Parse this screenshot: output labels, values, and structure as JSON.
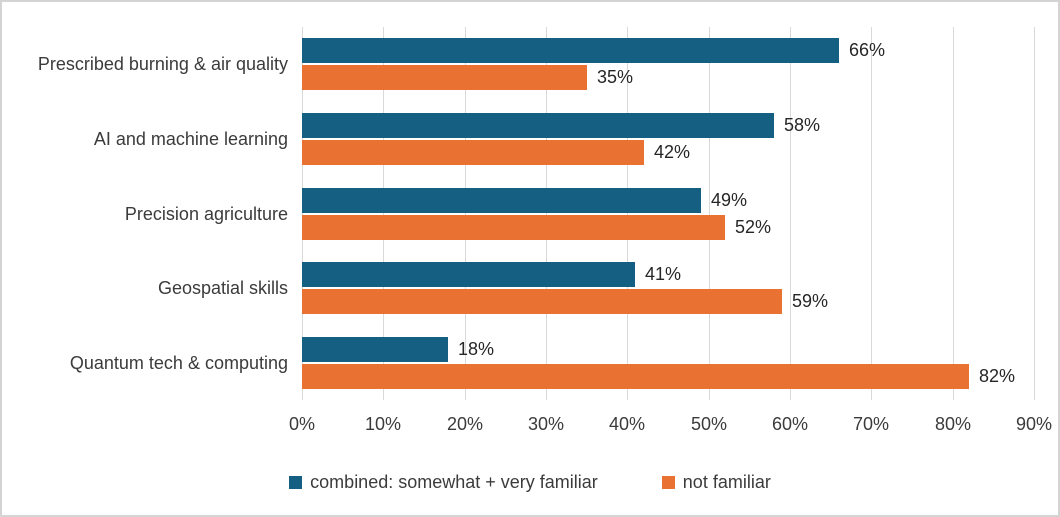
{
  "figure": {
    "background": "#FFFFFF",
    "border_color": "#D4D4D4"
  },
  "chart_data": {
    "type": "bar",
    "orientation": "horizontal",
    "title": "",
    "categories": [
      "Prescribed burning & air quality",
      "AI and machine learning",
      "Precision agriculture",
      "Geospatial skills",
      "Quantum tech & computing"
    ],
    "series": [
      {
        "name": "combined: somewhat + very familiar",
        "color": "#156082",
        "values": [
          66,
          58,
          49,
          41,
          18
        ],
        "labels": [
          "66%",
          "58%",
          "49%",
          "41%",
          "18%"
        ]
      },
      {
        "name": "not familiar",
        "color": "#E97132",
        "values": [
          35,
          42,
          52,
          59,
          82
        ],
        "labels": [
          "35%",
          "42%",
          "52%",
          "59%",
          "82%"
        ]
      }
    ],
    "xlim": [
      0,
      90
    ],
    "x_tick_values": [
      0,
      10,
      20,
      30,
      40,
      50,
      60,
      70,
      80,
      90
    ],
    "x_tick_labels": [
      "0%",
      "10%",
      "20%",
      "30%",
      "40%",
      "50%",
      "60%",
      "70%",
      "80%",
      "90%"
    ],
    "grid": true,
    "gridline_color": "#D9D9D9",
    "data_labels": true,
    "data_label_color": "#262626",
    "text_color": "#3B3B3B",
    "legend_position": "bottom"
  }
}
